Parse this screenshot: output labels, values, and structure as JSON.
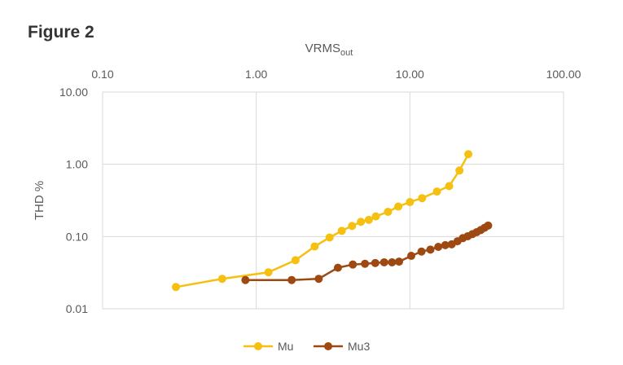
{
  "figure_title": "Figure 2",
  "colors": {
    "mu": "#F5C010",
    "mu3": "#9E4812",
    "grid": "#d9d9d9",
    "text": "#595959"
  },
  "chart_data": {
    "type": "scatter",
    "title": "",
    "xlabel": "VRMS",
    "xlabel_subscript": "out",
    "ylabel": "THD %",
    "x_axis_position": "top",
    "x_scale": "log",
    "y_scale": "log",
    "xlim": [
      0.1,
      100
    ],
    "ylim": [
      0.01,
      10
    ],
    "x_ticks": [
      0.1,
      1,
      10,
      100
    ],
    "x_tick_labels": [
      "0.10",
      "1.00",
      "10.00",
      "100.00"
    ],
    "y_ticks": [
      0.01,
      0.1,
      1,
      10
    ],
    "y_tick_labels": [
      "0.01",
      "0.10",
      "1.00",
      "10.00"
    ],
    "grid": true,
    "legend_position": "bottom",
    "series": [
      {
        "name": "Mu",
        "color": "#F5C010",
        "x": [
          0.3,
          0.6,
          1.2,
          1.8,
          2.4,
          3.0,
          3.6,
          4.2,
          4.8,
          5.4,
          6.0,
          7.2,
          8.4,
          10.0,
          12.0,
          15.0,
          18.0,
          21.0,
          24.0
        ],
        "y": [
          0.02,
          0.026,
          0.032,
          0.047,
          0.073,
          0.097,
          0.12,
          0.14,
          0.16,
          0.17,
          0.19,
          0.22,
          0.26,
          0.3,
          0.34,
          0.42,
          0.5,
          0.82,
          1.38
        ]
      },
      {
        "name": "Mu3",
        "color": "#9E4812",
        "x": [
          0.85,
          1.7,
          2.55,
          3.4,
          4.25,
          5.1,
          5.95,
          6.8,
          7.65,
          8.5,
          10.2,
          11.9,
          13.6,
          15.3,
          17.0,
          18.7,
          20.4,
          22.1,
          23.8,
          25.5,
          27.2,
          28.9,
          30.6,
          32.3
        ],
        "y": [
          0.025,
          0.025,
          0.026,
          0.037,
          0.041,
          0.042,
          0.043,
          0.044,
          0.044,
          0.045,
          0.054,
          0.062,
          0.066,
          0.072,
          0.076,
          0.078,
          0.086,
          0.095,
          0.101,
          0.108,
          0.115,
          0.123,
          0.132,
          0.142
        ]
      }
    ]
  }
}
